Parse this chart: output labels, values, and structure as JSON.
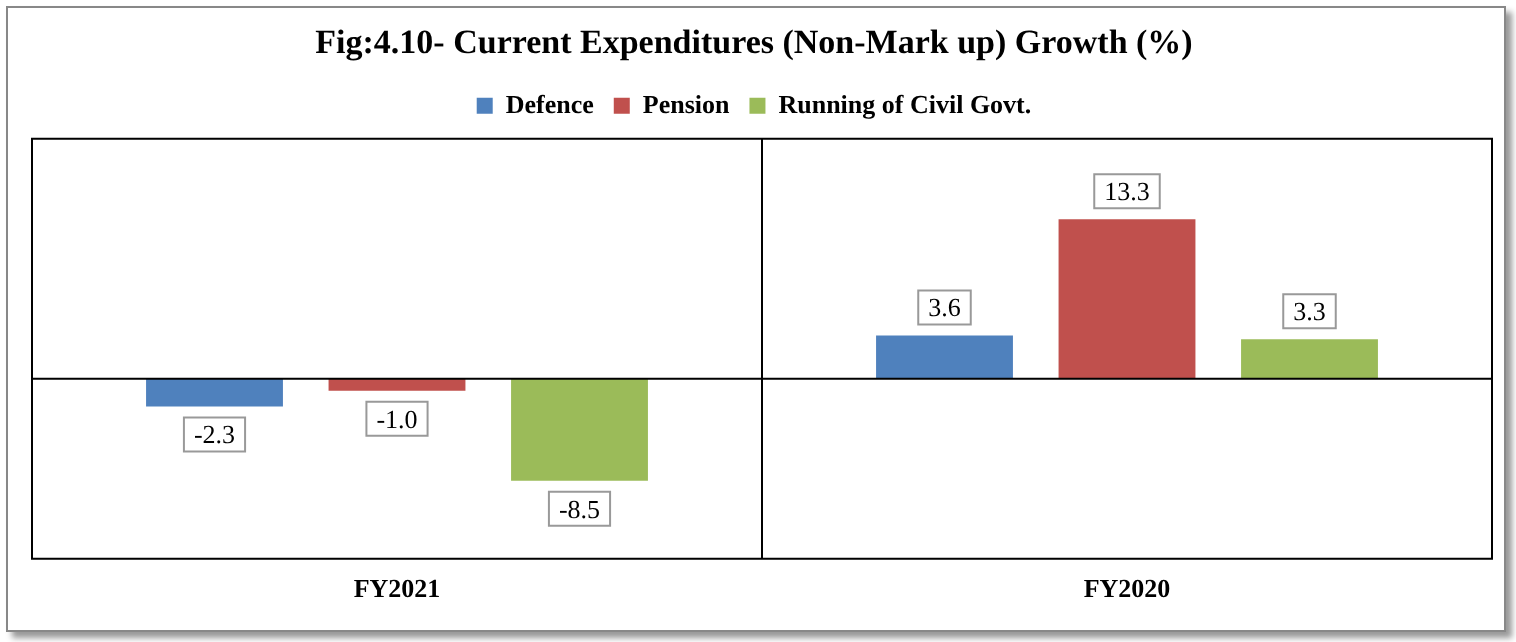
{
  "chart_data": {
    "type": "bar",
    "title": "Fig:4.10- Current Expenditures (Non-Mark up) Growth (%)",
    "categories": [
      "FY2021",
      "FY2020"
    ],
    "series": [
      {
        "name": "Defence",
        "color": "#4f81bd",
        "values": [
          -2.3,
          3.6
        ],
        "value_labels": [
          "-2.3",
          "3.6"
        ]
      },
      {
        "name": "Pension",
        "color": "#c0504d",
        "values": [
          -1.0,
          13.3
        ],
        "value_labels": [
          "-1.0",
          "13.3"
        ]
      },
      {
        "name": "Running of Civil Govt.",
        "color": "#9bbb59",
        "values": [
          -8.5,
          3.3
        ],
        "value_labels": [
          "-8.5",
          "3.3"
        ]
      }
    ],
    "grid": "x",
    "legend": "top",
    "tick_labels": "x"
  }
}
